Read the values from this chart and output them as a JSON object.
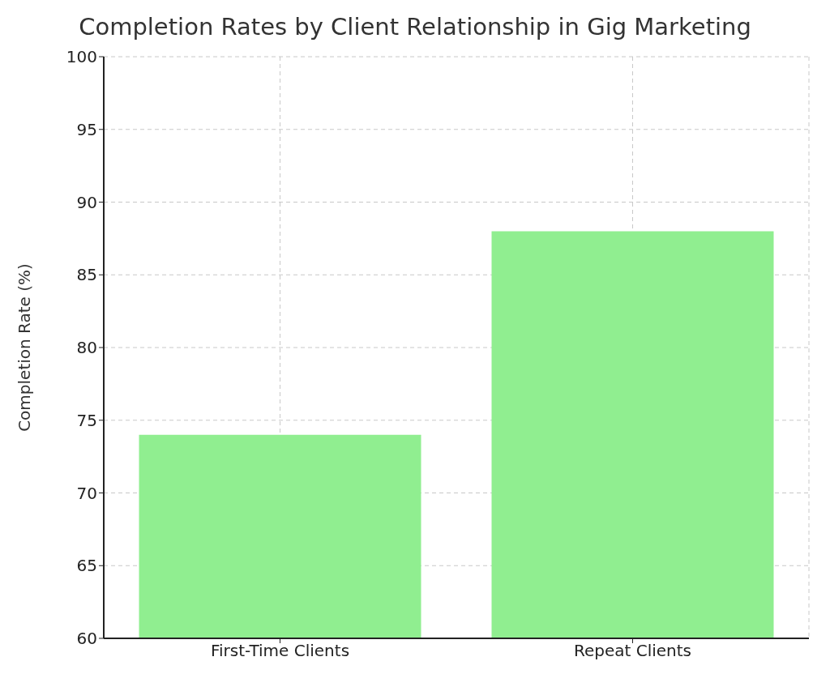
{
  "chart_data": {
    "type": "bar",
    "title": "Completion Rates by Client Relationship in Gig Marketing",
    "ylabel": "Completion Rate (%)",
    "categories": [
      "First-Time Clients",
      "Repeat Clients"
    ],
    "values": [
      74,
      88
    ],
    "color": "#90ee90",
    "ylim": [
      60,
      100
    ],
    "yticks": [
      60,
      65,
      70,
      75,
      80,
      85,
      90,
      95,
      100
    ],
    "grid": true
  }
}
